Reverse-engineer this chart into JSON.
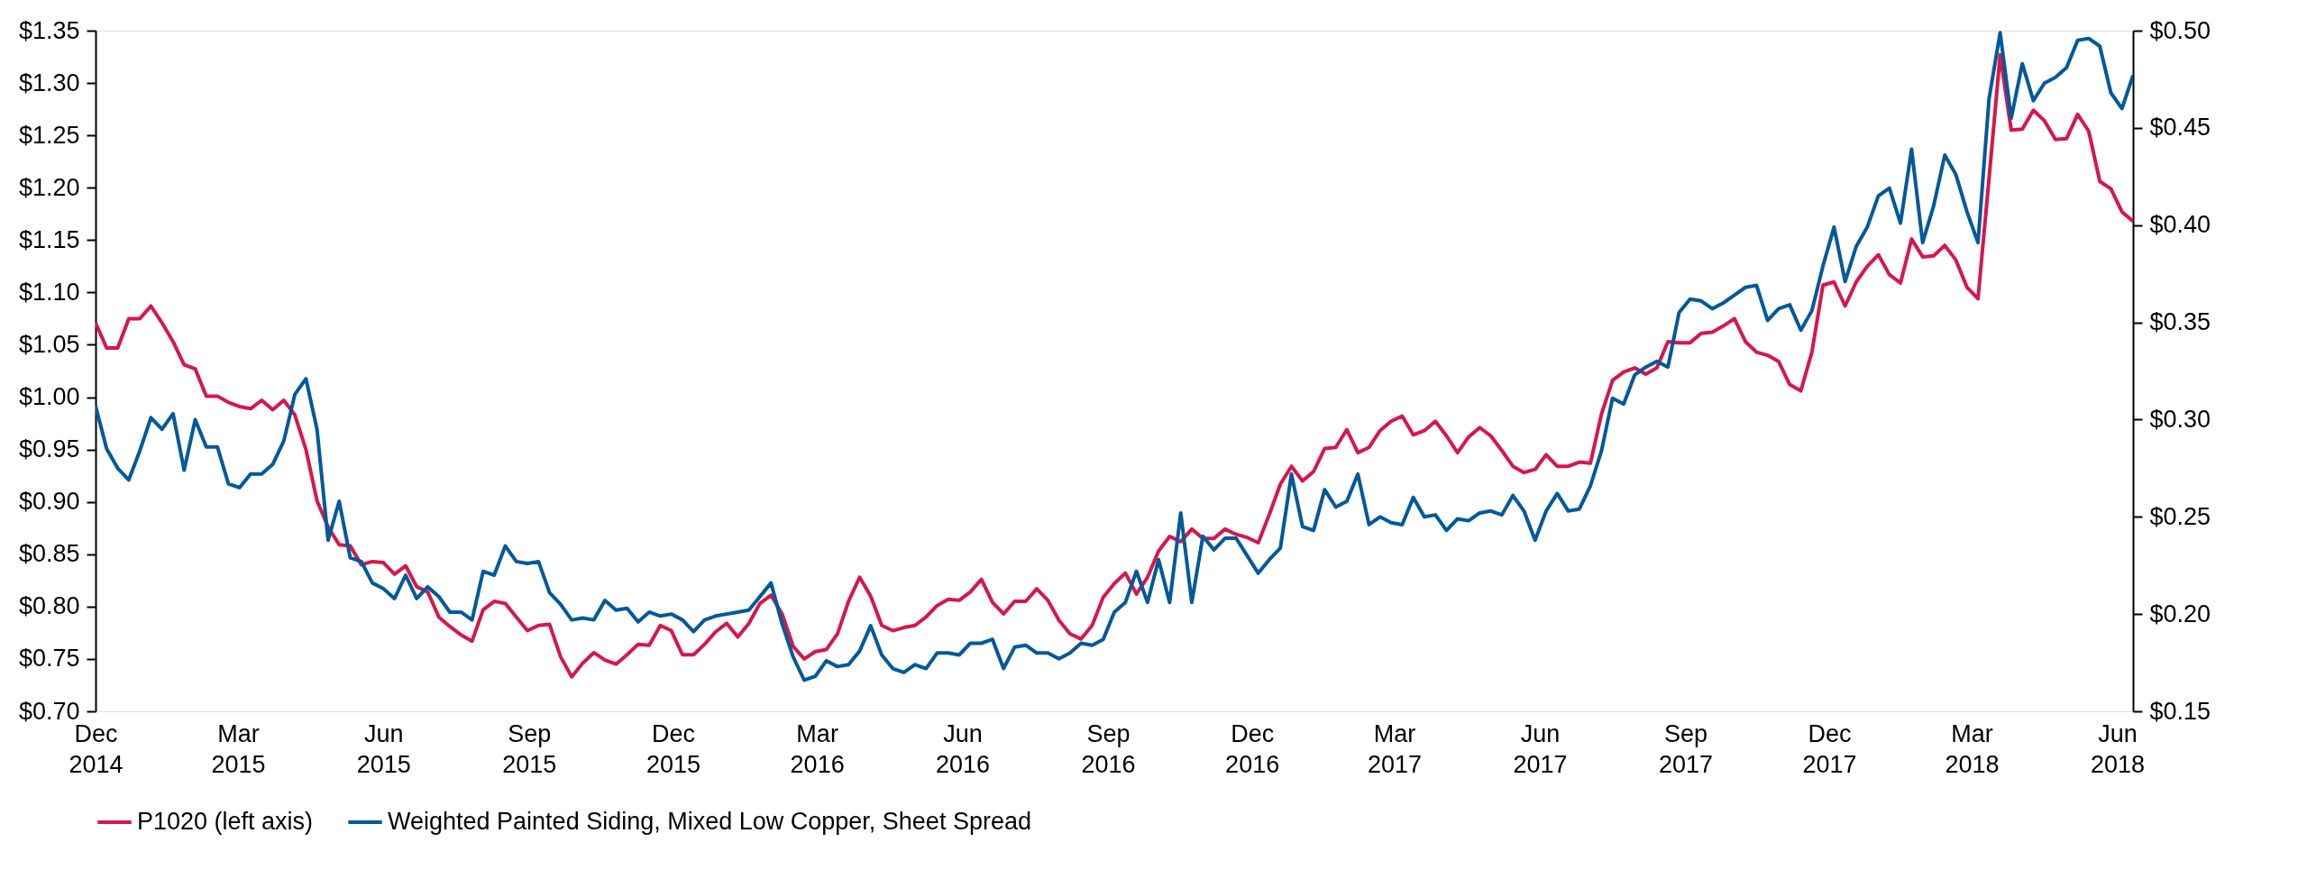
{
  "chart_data": {
    "type": "line",
    "x": [
      "2014-12-01",
      "2014-12-08",
      "2014-12-15",
      "2014-12-22",
      "2014-12-29",
      "2015-01-05",
      "2015-01-12",
      "2015-01-19",
      "2015-01-26",
      "2015-02-02",
      "2015-02-09",
      "2015-02-16",
      "2015-02-23",
      "2015-03-02",
      "2015-03-09",
      "2015-03-16",
      "2015-03-23",
      "2015-03-30",
      "2015-04-06",
      "2015-04-13",
      "2015-04-20",
      "2015-04-27",
      "2015-05-04",
      "2015-05-11",
      "2015-05-18",
      "2015-05-25",
      "2015-06-01",
      "2015-06-08",
      "2015-06-15",
      "2015-06-22",
      "2015-06-29",
      "2015-07-06",
      "2015-07-13",
      "2015-07-20",
      "2015-07-27",
      "2015-08-03",
      "2015-08-10",
      "2015-08-17",
      "2015-08-24",
      "2015-08-31",
      "2015-09-07",
      "2015-09-14",
      "2015-09-21",
      "2015-09-28",
      "2015-10-05",
      "2015-10-12",
      "2015-10-19",
      "2015-10-26",
      "2015-11-02",
      "2015-11-09",
      "2015-11-16",
      "2015-11-23",
      "2015-11-30",
      "2015-12-07",
      "2015-12-14",
      "2015-12-21",
      "2015-12-28",
      "2016-01-04",
      "2016-01-11",
      "2016-01-18",
      "2016-01-25",
      "2016-02-01",
      "2016-02-08",
      "2016-02-15",
      "2016-02-22",
      "2016-02-29",
      "2016-03-07",
      "2016-03-14",
      "2016-03-21",
      "2016-03-28",
      "2016-04-04",
      "2016-04-11",
      "2016-04-18",
      "2016-04-25",
      "2016-05-02",
      "2016-05-09",
      "2016-05-16",
      "2016-05-23",
      "2016-05-30",
      "2016-06-06",
      "2016-06-13",
      "2016-06-20",
      "2016-06-27",
      "2016-07-04",
      "2016-07-11",
      "2016-07-18",
      "2016-07-25",
      "2016-08-01",
      "2016-08-08",
      "2016-08-15",
      "2016-08-22",
      "2016-08-29",
      "2016-09-05",
      "2016-09-12",
      "2016-09-19",
      "2016-09-26",
      "2016-10-03",
      "2016-10-10",
      "2016-10-17",
      "2016-10-24",
      "2016-10-31",
      "2016-11-07",
      "2016-11-14",
      "2016-11-21",
      "2016-11-28",
      "2016-12-05",
      "2016-12-12",
      "2016-12-19",
      "2016-12-26",
      "2017-01-02",
      "2017-01-09",
      "2017-01-16",
      "2017-01-23",
      "2017-01-30",
      "2017-02-06",
      "2017-02-13",
      "2017-02-20",
      "2017-02-27",
      "2017-03-06",
      "2017-03-13",
      "2017-03-20",
      "2017-03-27",
      "2017-04-03",
      "2017-04-10",
      "2017-04-17",
      "2017-04-24",
      "2017-05-01",
      "2017-05-08",
      "2017-05-15",
      "2017-05-22",
      "2017-05-29",
      "2017-06-05",
      "2017-06-12",
      "2017-06-19",
      "2017-06-26",
      "2017-07-03",
      "2017-07-10",
      "2017-07-17",
      "2017-07-24",
      "2017-07-31",
      "2017-08-07",
      "2017-08-14",
      "2017-08-21",
      "2017-08-28",
      "2017-09-04",
      "2017-09-11",
      "2017-09-18",
      "2017-09-25",
      "2017-10-02",
      "2017-10-09",
      "2017-10-16",
      "2017-10-23",
      "2017-10-30",
      "2017-11-06",
      "2017-11-13",
      "2017-11-20",
      "2017-11-27",
      "2017-12-04",
      "2017-12-11",
      "2017-12-18",
      "2017-12-25",
      "2018-01-01",
      "2018-01-08",
      "2018-01-15",
      "2018-01-22",
      "2018-01-29",
      "2018-02-05",
      "2018-02-12",
      "2018-02-19",
      "2018-02-26",
      "2018-03-05",
      "2018-03-12",
      "2018-03-19",
      "2018-03-26",
      "2018-04-02",
      "2018-04-09",
      "2018-04-16",
      "2018-04-23",
      "2018-04-30",
      "2018-05-07",
      "2018-05-14",
      "2018-05-21",
      "2018-05-28",
      "2018-06-04",
      "2018-06-11"
    ],
    "series": [
      {
        "name": "P1020 (left axis)",
        "color": "#d6174b",
        "axis": "y",
        "values": [
          1.071,
          1.047,
          1.047,
          1.075,
          1.075,
          1.087,
          1.071,
          1.053,
          1.031,
          1.027,
          1.001,
          1.001,
          0.995,
          0.991,
          0.989,
          0.997,
          0.988,
          0.997,
          0.983,
          0.95,
          0.901,
          0.876,
          0.859,
          0.858,
          0.84,
          0.843,
          0.842,
          0.831,
          0.839,
          0.819,
          0.814,
          0.79,
          0.781,
          0.773,
          0.767,
          0.797,
          0.805,
          0.803,
          0.79,
          0.777,
          0.782,
          0.783,
          0.752,
          0.733,
          0.746,
          0.756,
          0.749,
          0.745,
          0.754,
          0.764,
          0.763,
          0.782,
          0.777,
          0.754,
          0.754,
          0.764,
          0.776,
          0.784,
          0.771,
          0.784,
          0.803,
          0.811,
          0.793,
          0.762,
          0.75,
          0.757,
          0.759,
          0.774,
          0.805,
          0.828,
          0.81,
          0.782,
          0.777,
          0.78,
          0.782,
          0.79,
          0.801,
          0.807,
          0.806,
          0.814,
          0.826,
          0.804,
          0.793,
          0.805,
          0.805,
          0.817,
          0.806,
          0.787,
          0.774,
          0.769,
          0.782,
          0.809,
          0.822,
          0.832,
          0.812,
          0.828,
          0.853,
          0.867,
          0.862,
          0.874,
          0.865,
          0.865,
          0.874,
          0.869,
          0.866,
          0.861,
          0.888,
          0.917,
          0.934,
          0.92,
          0.929,
          0.951,
          0.952,
          0.969,
          0.947,
          0.952,
          0.968,
          0.977,
          0.982,
          0.964,
          0.968,
          0.977,
          0.963,
          0.947,
          0.962,
          0.971,
          0.963,
          0.949,
          0.934,
          0.928,
          0.931,
          0.945,
          0.934,
          0.934,
          0.938,
          0.937,
          0.984,
          1.016,
          1.024,
          1.028,
          1.022,
          1.028,
          1.053,
          1.052,
          1.052,
          1.061,
          1.062,
          1.068,
          1.075,
          1.053,
          1.043,
          1.04,
          1.034,
          1.012,
          1.006,
          1.043,
          1.107,
          1.11,
          1.087,
          1.11,
          1.125,
          1.136,
          1.117,
          1.109,
          1.151,
          1.134,
          1.135,
          1.145,
          1.131,
          1.105,
          1.094,
          1.209,
          1.327,
          1.255,
          1.256,
          1.274,
          1.264,
          1.246,
          1.247,
          1.27,
          1.254,
          1.206,
          1.199,
          1.177,
          1.168
        ]
      },
      {
        "name": "Weighted Painted Siding, Mixed Low Copper, Sheet Spread",
        "color": "#00599a",
        "axis": "y2",
        "values": [
          0.307,
          0.285,
          0.275,
          0.269,
          0.284,
          0.301,
          0.295,
          0.303,
          0.274,
          0.3,
          0.286,
          0.286,
          0.267,
          0.265,
          0.272,
          0.272,
          0.277,
          0.289,
          0.313,
          0.321,
          0.295,
          0.238,
          0.258,
          0.229,
          0.227,
          0.216,
          0.213,
          0.208,
          0.22,
          0.208,
          0.214,
          0.209,
          0.201,
          0.201,
          0.197,
          0.222,
          0.22,
          0.235,
          0.227,
          0.226,
          0.227,
          0.211,
          0.205,
          0.197,
          0.198,
          0.197,
          0.207,
          0.202,
          0.203,
          0.196,
          0.201,
          0.199,
          0.2,
          0.197,
          0.191,
          0.197,
          0.199,
          0.2,
          0.201,
          0.202,
          0.209,
          0.216,
          0.195,
          0.178,
          0.166,
          0.168,
          0.176,
          0.173,
          0.174,
          0.181,
          0.194,
          0.179,
          0.172,
          0.17,
          0.174,
          0.172,
          0.18,
          0.18,
          0.179,
          0.185,
          0.185,
          0.187,
          0.172,
          0.183,
          0.184,
          0.18,
          0.18,
          0.177,
          0.18,
          0.185,
          0.184,
          0.187,
          0.201,
          0.206,
          0.222,
          0.206,
          0.228,
          0.206,
          0.252,
          0.206,
          0.24,
          0.233,
          0.239,
          0.239,
          0.23,
          0.221,
          0.228,
          0.234,
          0.272,
          0.245,
          0.243,
          0.264,
          0.255,
          0.258,
          0.272,
          0.246,
          0.25,
          0.247,
          0.246,
          0.26,
          0.25,
          0.251,
          0.243,
          0.249,
          0.248,
          0.252,
          0.253,
          0.251,
          0.261,
          0.253,
          0.238,
          0.253,
          0.262,
          0.253,
          0.254,
          0.266,
          0.284,
          0.311,
          0.308,
          0.323,
          0.327,
          0.33,
          0.327,
          0.355,
          0.362,
          0.361,
          0.357,
          0.36,
          0.364,
          0.368,
          0.369,
          0.351,
          0.357,
          0.359,
          0.346,
          0.356,
          0.379,
          0.399,
          0.371,
          0.389,
          0.399,
          0.415,
          0.419,
          0.401,
          0.439,
          0.391,
          0.41,
          0.436,
          0.426,
          0.407,
          0.391,
          0.465,
          0.499,
          0.455,
          0.483,
          0.464,
          0.473,
          0.476,
          0.481,
          0.495,
          0.496,
          0.492,
          0.468,
          0.46,
          0.477
        ]
      }
    ],
    "xlim": [
      "2014-12-01",
      "2018-06-11"
    ],
    "xticks": [
      {
        "value": "2014-12-01",
        "label": "Dec 2014"
      },
      {
        "value": "2015-03-01",
        "label": "Mar 2015"
      },
      {
        "value": "2015-06-01",
        "label": "Jun 2015"
      },
      {
        "value": "2015-09-01",
        "label": "Sep 2015"
      },
      {
        "value": "2015-12-01",
        "label": "Dec 2015"
      },
      {
        "value": "2016-03-01",
        "label": "Mar 2016"
      },
      {
        "value": "2016-06-01",
        "label": "Jun 2016"
      },
      {
        "value": "2016-09-01",
        "label": "Sep 2016"
      },
      {
        "value": "2016-12-01",
        "label": "Dec 2016"
      },
      {
        "value": "2017-03-01",
        "label": "Mar 2017"
      },
      {
        "value": "2017-06-01",
        "label": "Jun 2017"
      },
      {
        "value": "2017-09-01",
        "label": "Sep 2017"
      },
      {
        "value": "2017-12-01",
        "label": "Dec 2017"
      },
      {
        "value": "2018-03-01",
        "label": "Mar 2018"
      },
      {
        "value": "2018-06-01",
        "label": "Jun 2018"
      }
    ],
    "ylim": [
      0.7,
      1.35
    ],
    "yticks": [
      {
        "value": 0.7,
        "label": "$0.70"
      },
      {
        "value": 0.75,
        "label": "$0.75"
      },
      {
        "value": 0.8,
        "label": "$0.80"
      },
      {
        "value": 0.85,
        "label": "$0.85"
      },
      {
        "value": 0.9,
        "label": "$0.90"
      },
      {
        "value": 0.95,
        "label": "$0.95"
      },
      {
        "value": 1.0,
        "label": "$1.00"
      },
      {
        "value": 1.05,
        "label": "$1.05"
      },
      {
        "value": 1.1,
        "label": "$1.10"
      },
      {
        "value": 1.15,
        "label": "$1.15"
      },
      {
        "value": 1.2,
        "label": "$1.20"
      },
      {
        "value": 1.25,
        "label": "$1.25"
      },
      {
        "value": 1.3,
        "label": "$1.30"
      },
      {
        "value": 1.35,
        "label": "$1.35"
      }
    ],
    "y2lim": [
      0.15,
      0.5
    ],
    "y2ticks": [
      {
        "value": 0.15,
        "label": "$0.15"
      },
      {
        "value": 0.2,
        "label": "$0.20"
      },
      {
        "value": 0.25,
        "label": "$0.25"
      },
      {
        "value": 0.3,
        "label": "$0.30"
      },
      {
        "value": 0.35,
        "label": "$0.35"
      },
      {
        "value": 0.4,
        "label": "$0.40"
      },
      {
        "value": 0.45,
        "label": "$0.45"
      },
      {
        "value": 0.5,
        "label": "$0.50"
      }
    ],
    "grid": false,
    "legend": "bottom",
    "line_style": "solid"
  }
}
